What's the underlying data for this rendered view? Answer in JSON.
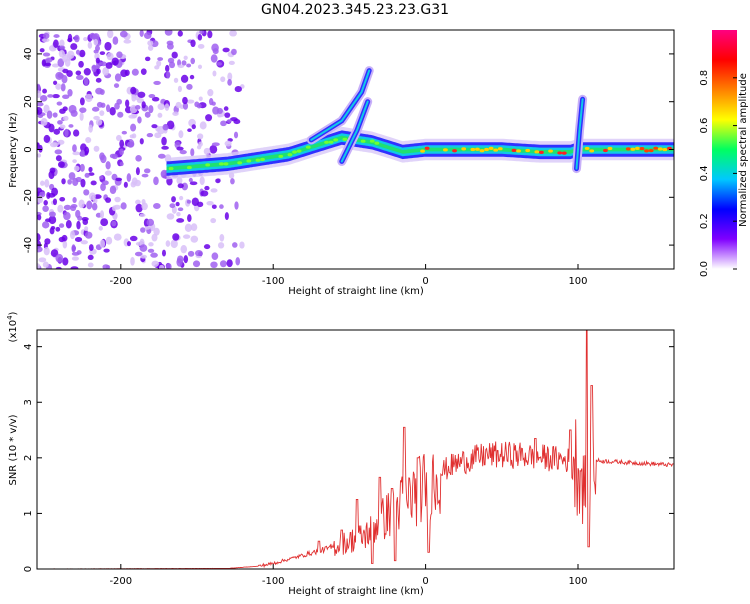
{
  "title": "GN04.2023.345.23.23.G31",
  "chart_data": [
    {
      "type": "heatmap",
      "xlabel": "Height of straight line (km)",
      "ylabel": "Frequency (Hz)",
      "xlim": [
        -255,
        163
      ],
      "ylim": [
        -50,
        50
      ],
      "xticks": [
        -200,
        -100,
        0,
        100
      ],
      "yticks": [
        -40,
        -20,
        0,
        20,
        40
      ],
      "colorbar": {
        "label": "Normalized spectral amplitude",
        "range": [
          0,
          1
        ],
        "ticks": [
          "0.0",
          "0.2",
          "0.4",
          "0.6",
          "0.8"
        ],
        "colors": [
          "#ffffff",
          "#8000ff",
          "#0000ff",
          "#00c8ff",
          "#00ff60",
          "#ffff00",
          "#ff8000",
          "#ff0000",
          "#ff0080"
        ]
      },
      "ridge": {
        "x": [
          -170,
          -150,
          -130,
          -110,
          -90,
          -70,
          -55,
          -45,
          -35,
          -25,
          -15,
          0,
          25,
          50,
          75,
          95,
          100,
          110,
          130,
          163
        ],
        "freq": [
          -8,
          -7,
          -6,
          -4,
          -2,
          2,
          5,
          4,
          3,
          1,
          -1,
          0,
          0,
          0,
          -1,
          -1,
          0,
          0,
          0,
          0
        ]
      },
      "chirps": [
        {
          "x": [
            -75,
            -55,
            -42,
            -37
          ],
          "freq": [
            4,
            12,
            24,
            33
          ]
        },
        {
          "x": [
            -55,
            -45,
            -38
          ],
          "freq": [
            -5,
            8,
            20
          ]
        },
        {
          "x": [
            99,
            101,
            103
          ],
          "freq": [
            -8,
            8,
            21
          ]
        }
      ]
    },
    {
      "type": "line",
      "xlabel": "Height of straight line (km)",
      "ylabel": "SNR (10 * v/v)",
      "y_scale_label": "(x10",
      "y_scale_exp": "4",
      "y_scale_close": ")",
      "xlim": [
        -255,
        163
      ],
      "ylim": [
        0,
        4.3
      ],
      "xticks": [
        -200,
        -100,
        0,
        100
      ],
      "yticks": [
        0,
        1,
        2,
        3,
        4
      ],
      "series": [
        {
          "color": "#e03030",
          "envelope": {
            "x": [
              -255,
              -130,
              -110,
              -100,
              -80,
              -60,
              -40,
              -30,
              -20,
              -10,
              0,
              10,
              20,
              40,
              60,
              80,
              95,
              100,
              103,
              106,
              108,
              110,
              112,
              130,
              163
            ],
            "y": [
              0,
              0.01,
              0.05,
              0.1,
              0.25,
              0.4,
              0.6,
              0.85,
              1.1,
              1.3,
              1.5,
              1.75,
              1.9,
              2.05,
              2.05,
              2.0,
              1.95,
              1.9,
              1.6,
              1.2,
              1.8,
              2.2,
              1.95,
              1.92,
              1.87
            ]
          },
          "spikes": [
            {
              "x": -70,
              "y": 0.5
            },
            {
              "x": -55,
              "y": 0.7
            },
            {
              "x": -45,
              "y": 1.25
            },
            {
              "x": -30,
              "y": 1.65
            },
            {
              "x": -22,
              "y": 1.45
            },
            {
              "x": -14,
              "y": 2.55
            },
            {
              "x": -5,
              "y": 2.0
            },
            {
              "x": 72,
              "y": 2.35
            },
            {
              "x": 95,
              "y": 2.5
            },
            {
              "x": 106,
              "y": 4.3
            },
            {
              "x": 109,
              "y": 3.3
            }
          ],
          "dips": [
            {
              "x": -35,
              "y": 0.1
            },
            {
              "x": -20,
              "y": 0.15
            },
            {
              "x": 2,
              "y": 0.3
            },
            {
              "x": 107,
              "y": 0.4
            }
          ]
        }
      ]
    }
  ]
}
